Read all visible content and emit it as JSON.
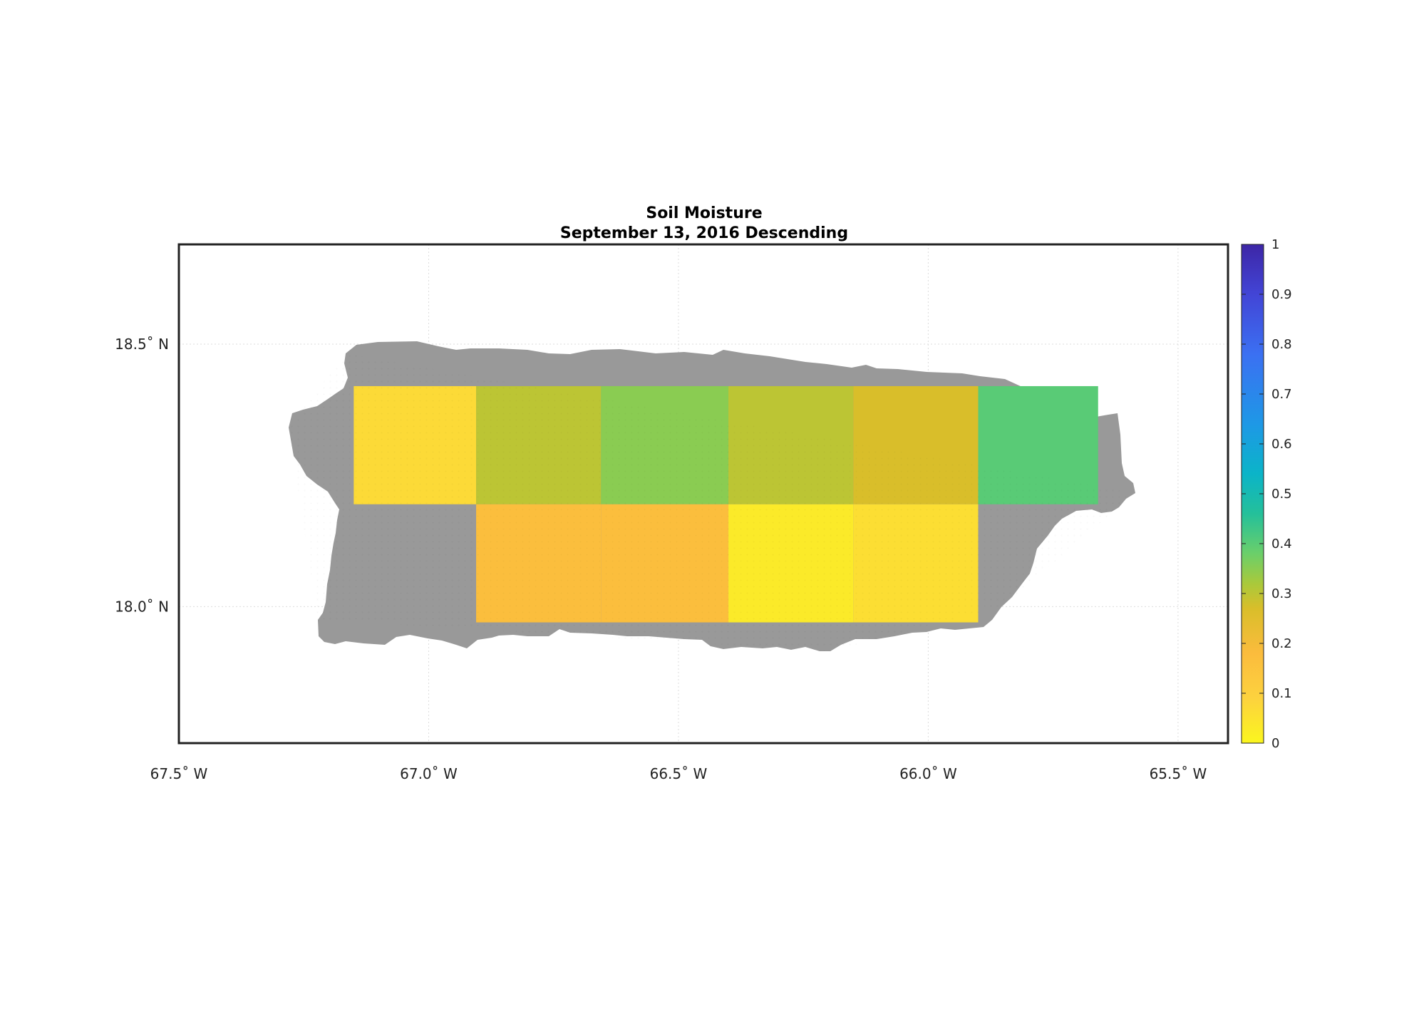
{
  "title": "Soil Moisture",
  "subtitle": "September 13, 2016 Descending",
  "chart_data": {
    "type": "heatmap",
    "region": "Puerto Rico",
    "xlim": [
      -67.5,
      -65.4
    ],
    "ylim": [
      17.74,
      18.69
    ],
    "grid": true,
    "x_ticks": [
      {
        "value": -67.5,
        "label": "67.5˚ W"
      },
      {
        "value": -67.0,
        "label": "67.0˚ W"
      },
      {
        "value": -66.5,
        "label": "66.5˚ W"
      },
      {
        "value": -66.0,
        "label": "66.0˚ W"
      },
      {
        "value": -65.5,
        "label": "65.5˚ W"
      }
    ],
    "y_ticks": [
      {
        "value": 18.5,
        "label": "18.5˚ N"
      },
      {
        "value": 18.0,
        "label": "18.0˚ N"
      }
    ],
    "no_data_color": "#999999",
    "cells": [
      {
        "lon": [
          -67.15,
          -66.905
        ],
        "lat": [
          18.195,
          18.42
        ],
        "value": 0.07
      },
      {
        "lon": [
          -66.905,
          -66.655
        ],
        "lat": [
          18.195,
          18.42
        ],
        "value": 0.3
      },
      {
        "lon": [
          -66.655,
          -66.4
        ],
        "lat": [
          18.195,
          18.42
        ],
        "value": 0.35
      },
      {
        "lon": [
          -66.4,
          -66.15
        ],
        "lat": [
          18.195,
          18.42
        ],
        "value": 0.3
      },
      {
        "lon": [
          -66.15,
          -65.9
        ],
        "lat": [
          18.195,
          18.42
        ],
        "value": 0.27
      },
      {
        "lon": [
          -65.9,
          -65.66
        ],
        "lat": [
          18.195,
          18.42
        ],
        "value": 0.4
      },
      {
        "lon": [
          -66.905,
          -66.655
        ],
        "lat": [
          17.97,
          18.195
        ],
        "value": 0.17
      },
      {
        "lon": [
          -66.655,
          -66.4
        ],
        "lat": [
          17.97,
          18.195
        ],
        "value": 0.17
      },
      {
        "lon": [
          -66.4,
          -66.15
        ],
        "lat": [
          17.97,
          18.195
        ],
        "value": 0.03
      },
      {
        "lon": [
          -66.15,
          -65.9
        ],
        "lat": [
          17.97,
          18.195
        ],
        "value": 0.06
      }
    ],
    "colorbar": {
      "range": [
        0,
        1
      ],
      "ticks": [
        "0",
        "0.1",
        "0.2",
        "0.3",
        "0.4",
        "0.5",
        "0.6",
        "0.7",
        "0.8",
        "0.9",
        "1"
      ],
      "colormap": [
        "#fbf61e",
        "#fcd23e",
        "#fbbc3d",
        "#d9be2a",
        "#a9c93b",
        "#6bcf6a",
        "#24c09a",
        "#0bb4c8",
        "#1e98e6",
        "#3b70f2",
        "#4245d6",
        "#3d26a6"
      ]
    }
  }
}
